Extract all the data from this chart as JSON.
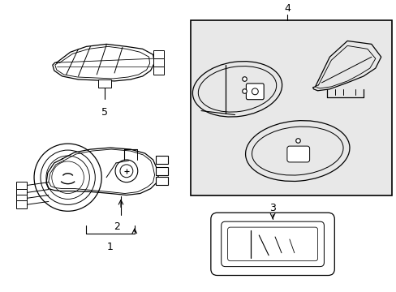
{
  "bg_color": "#ffffff",
  "box_bg": "#e8e8e8",
  "lc": "#000000",
  "fig_w": 4.89,
  "fig_h": 3.6,
  "dpi": 100
}
